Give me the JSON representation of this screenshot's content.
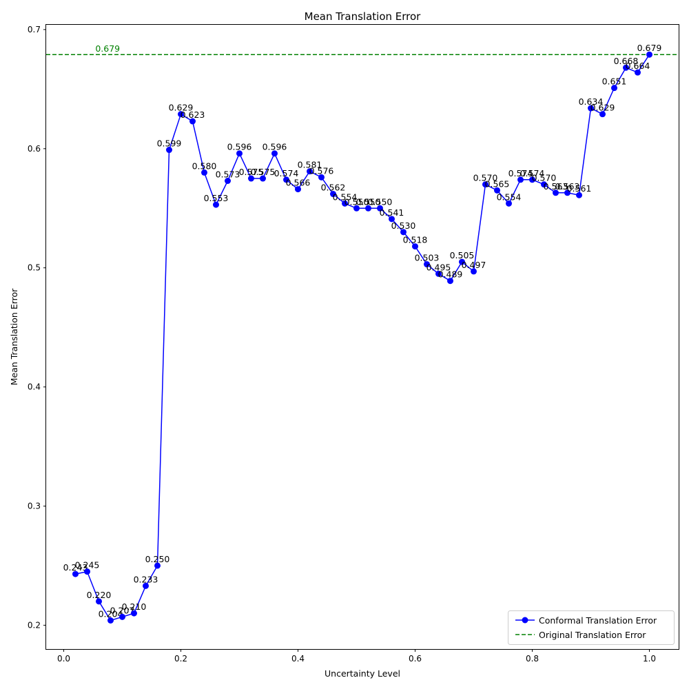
{
  "chart_data": {
    "type": "line",
    "title": "Mean Translation Error",
    "xlabel": "Uncertainty Level",
    "ylabel": "Mean Translation Error",
    "xlim": [
      -0.03,
      1.05
    ],
    "ylim": [
      0.18,
      0.704
    ],
    "x_ticks": [
      0.0,
      0.2,
      0.4,
      0.6,
      0.8,
      1.0
    ],
    "x_tick_labels": [
      "0.0",
      "0.2",
      "0.4",
      "0.6",
      "0.8",
      "1.0"
    ],
    "y_ticks": [
      0.2,
      0.3,
      0.4,
      0.5,
      0.6,
      0.7
    ],
    "y_tick_labels": [
      "0.2",
      "0.3",
      "0.4",
      "0.5",
      "0.6",
      "0.7"
    ],
    "grid": false,
    "legend_position": "bottom-right",
    "series": [
      {
        "name": "Conformal Translation Error",
        "color": "#0000ff",
        "marker": "circle",
        "x": [
          0.02,
          0.04,
          0.06,
          0.08,
          0.1,
          0.12,
          0.14,
          0.16,
          0.18,
          0.2,
          0.22,
          0.24,
          0.26,
          0.28,
          0.3,
          0.32,
          0.34,
          0.36,
          0.38,
          0.4,
          0.42,
          0.44,
          0.46,
          0.48,
          0.5,
          0.52,
          0.54,
          0.56,
          0.58,
          0.6,
          0.62,
          0.64,
          0.66,
          0.68,
          0.7,
          0.72,
          0.74,
          0.76,
          0.78,
          0.8,
          0.82,
          0.84,
          0.86,
          0.88,
          0.9,
          0.92,
          0.94,
          0.96,
          0.98,
          1.0
        ],
        "values": [
          0.243,
          0.245,
          0.22,
          0.204,
          0.207,
          0.21,
          0.233,
          0.25,
          0.599,
          0.629,
          0.623,
          0.58,
          0.553,
          0.573,
          0.596,
          0.575,
          0.575,
          0.596,
          0.574,
          0.566,
          0.581,
          0.576,
          0.562,
          0.554,
          0.55,
          0.55,
          0.55,
          0.541,
          0.53,
          0.518,
          0.503,
          0.495,
          0.489,
          0.505,
          0.497,
          0.57,
          0.565,
          0.554,
          0.574,
          0.574,
          0.57,
          0.563,
          0.563,
          0.561,
          0.634,
          0.629,
          0.651,
          0.668,
          0.664,
          0.679
        ],
        "labels": [
          "0.243",
          "0.245",
          "0.220",
          "0.204",
          "0.207",
          "0.210",
          "0.233",
          "0.250",
          "0.599",
          "0.629",
          "0.623",
          "0.580",
          "0.553",
          "0.573",
          "0.596",
          "0.575",
          "0.575",
          "0.596",
          "0.574",
          "0.566",
          "0.581",
          "0.576",
          "0.562",
          "0.554",
          "0.550",
          "0.550",
          "0.550",
          "0.541",
          "0.530",
          "0.518",
          "0.503",
          "0.495",
          "0.489",
          "0.505",
          "0.497",
          "0.570",
          "0.565",
          "0.554",
          "0.574",
          "0.574",
          "0.570",
          "0.563",
          "0.563",
          "0.561",
          "0.634",
          "0.629",
          "0.651",
          "0.668",
          "0.664",
          "0.679"
        ]
      }
    ],
    "reference_line": {
      "name": "Original Translation Error",
      "value": 0.679,
      "label": "0.679",
      "color": "#008000",
      "style": "dashed"
    }
  }
}
